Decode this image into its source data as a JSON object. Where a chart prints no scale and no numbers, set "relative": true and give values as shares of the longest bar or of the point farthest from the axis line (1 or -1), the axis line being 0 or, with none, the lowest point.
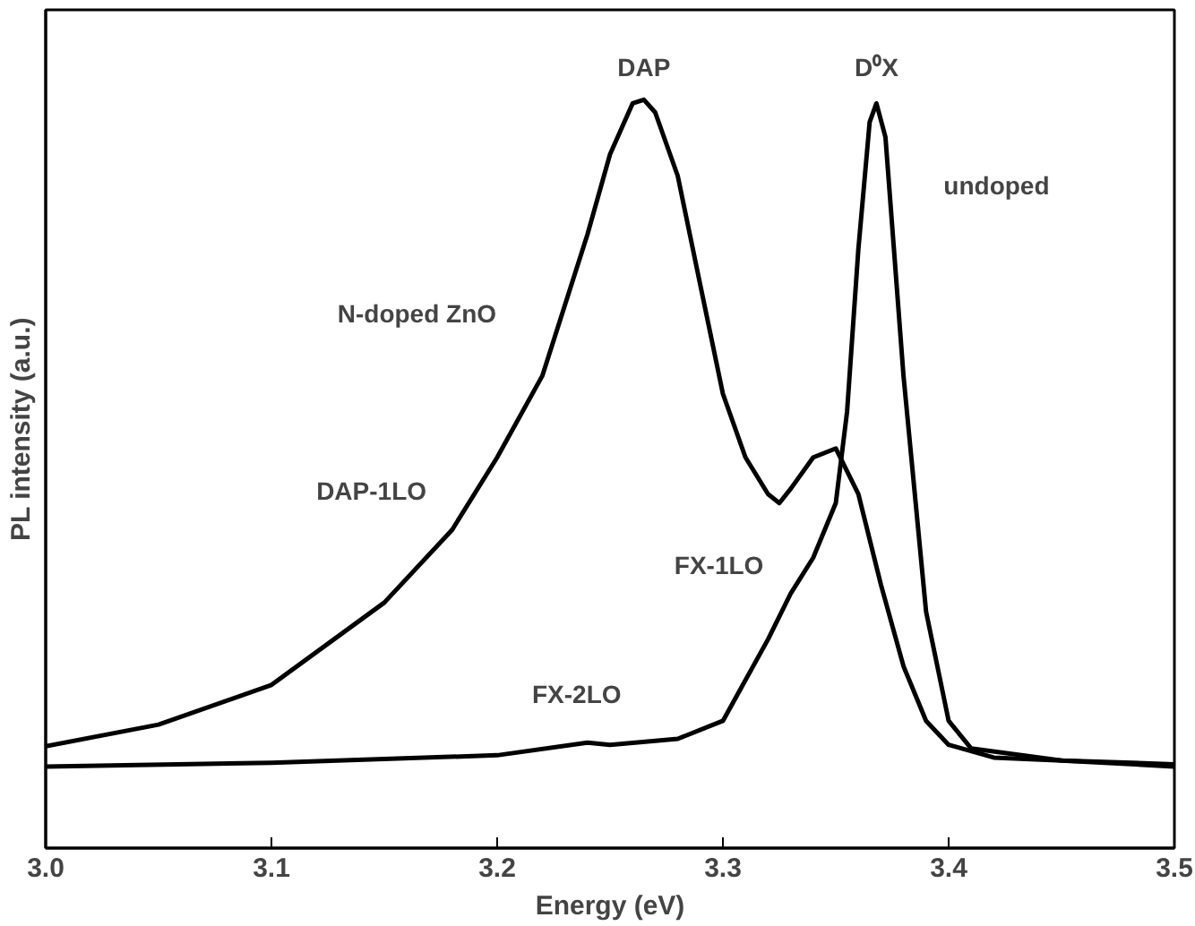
{
  "chart_data": {
    "type": "line",
    "relative": true,
    "xlabel": "Energy (eV)",
    "ylabel": "PL intensity (a.u.)",
    "xlim": [
      3.0,
      3.5
    ],
    "xticks": [
      {
        "value": 3.0,
        "label": "3.0"
      },
      3.1,
      3.2,
      3.3,
      3.4,
      3.5
    ],
    "grid": false,
    "marker": "none",
    "line_style": "solid",
    "series": [
      {
        "color": "#000000",
        "x": [
          3.0,
          3.05,
          3.1,
          3.15,
          3.18,
          3.2,
          3.22,
          3.24,
          3.25,
          3.26,
          3.265,
          3.27,
          3.28,
          3.29,
          3.3,
          3.31,
          3.32,
          3.325,
          3.33,
          3.34,
          3.35,
          3.36,
          3.37,
          3.38,
          3.39,
          3.4,
          3.42,
          3.45,
          3.5
        ],
        "values": [
          0.136,
          0.165,
          0.218,
          0.328,
          0.425,
          0.522,
          0.631,
          0.82,
          0.927,
          0.995,
          1.0,
          0.983,
          0.898,
          0.752,
          0.607,
          0.522,
          0.473,
          0.461,
          0.48,
          0.522,
          0.534,
          0.473,
          0.352,
          0.243,
          0.17,
          0.138,
          0.121,
          0.117,
          0.109
        ]
      },
      {
        "color": "#000000",
        "x": [
          3.0,
          3.1,
          3.2,
          3.24,
          3.25,
          3.28,
          3.3,
          3.32,
          3.33,
          3.34,
          3.35,
          3.355,
          3.36,
          3.365,
          3.368,
          3.372,
          3.38,
          3.39,
          3.4,
          3.41,
          3.45,
          3.5
        ],
        "values": [
          0.109,
          0.114,
          0.124,
          0.141,
          0.138,
          0.146,
          0.17,
          0.279,
          0.34,
          0.388,
          0.461,
          0.583,
          0.8,
          0.97,
          0.995,
          0.95,
          0.631,
          0.316,
          0.17,
          0.133,
          0.117,
          0.112
        ]
      }
    ],
    "annotations": [
      {
        "text": "DAP",
        "x": 3.265,
        "y": 1.0
      },
      {
        "text": "D⁰X",
        "x": 3.368,
        "y": 0.995
      },
      {
        "text": "undoped",
        "x": 3.372,
        "y": 0.95
      },
      {
        "text": "N-doped ZnO",
        "x": 3.22,
        "y": 0.631
      },
      {
        "text": "DAP-1LO",
        "x": 3.18,
        "y": 0.425
      },
      {
        "text": "FX-1LO",
        "x": 3.33,
        "y": 0.34
      },
      {
        "text": "FX-2LO",
        "x": 3.24,
        "y": 0.141
      }
    ]
  }
}
